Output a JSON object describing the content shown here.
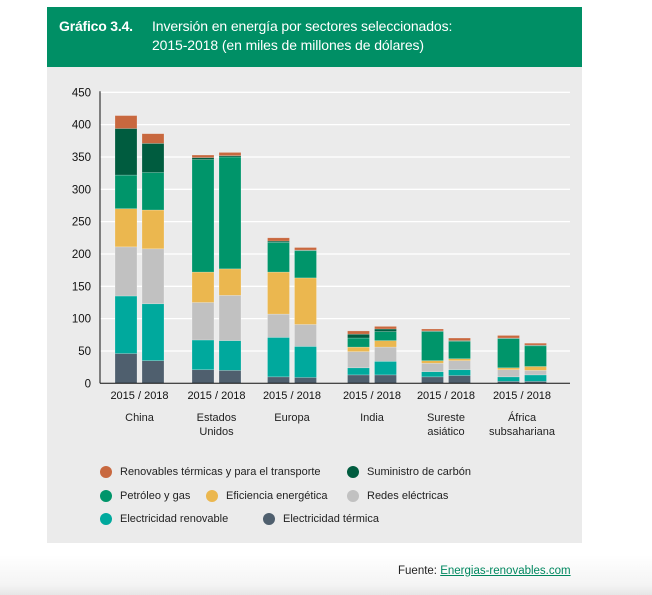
{
  "header": {
    "number": "Gráfico 3.4.",
    "title_line1": "Inversión en energía por sectores seleccionados:",
    "title_line2": "2015-2018 (en miles de millones de dólares)"
  },
  "colors": {
    "header_bg": "#008f65",
    "panel_bg": "#ebebeb",
    "link": "#00875f"
  },
  "source": {
    "prefix": "Fuente: ",
    "link_text": "Energias-renovables.com"
  },
  "chart_data": {
    "type": "bar",
    "stacked": true,
    "title": "Inversión en energía por sectores seleccionados: 2015-2018 (en miles de millones de dólares)",
    "xlabel": "",
    "ylabel": "",
    "ylim": [
      0,
      450
    ],
    "yticks": [
      0,
      50,
      100,
      150,
      200,
      250,
      300,
      350,
      400,
      450
    ],
    "grid": true,
    "legend_position": "bottom",
    "groups": [
      {
        "name": "China",
        "label_lines": [
          "China"
        ]
      },
      {
        "name": "Estados Unidos",
        "label_lines": [
          "Estados",
          "Unidos"
        ]
      },
      {
        "name": "Europa",
        "label_lines": [
          "Europa"
        ]
      },
      {
        "name": "India",
        "label_lines": [
          "India"
        ]
      },
      {
        "name": "Sureste asiático",
        "label_lines": [
          "Sureste",
          "asiático"
        ]
      },
      {
        "name": "África subsahariana",
        "label_lines": [
          "África",
          "subsahariana"
        ]
      }
    ],
    "bar_years": [
      "2015",
      "2018"
    ],
    "year_label": "2015 / 2018",
    "series": [
      {
        "name": "Electricidad térmica",
        "color": "#4f5f6e",
        "values": [
          [
            46,
            35
          ],
          [
            21,
            20
          ],
          [
            10,
            9
          ],
          [
            13,
            13
          ],
          [
            10,
            12
          ],
          [
            3,
            3
          ]
        ]
      },
      {
        "name": "Electricidad renovable",
        "color": "#00a99d",
        "values": [
          [
            89,
            88
          ],
          [
            46,
            46
          ],
          [
            61,
            48
          ],
          [
            11,
            21
          ],
          [
            8,
            9
          ],
          [
            7,
            10
          ]
        ]
      },
      {
        "name": "Redes eléctricas",
        "color": "#c1c1c1",
        "values": [
          [
            76,
            85
          ],
          [
            58,
            70
          ],
          [
            36,
            34
          ],
          [
            25,
            22
          ],
          [
            13,
            14
          ],
          [
            11,
            7
          ]
        ]
      },
      {
        "name": "Eficiencia energética",
        "color": "#ebb74f",
        "values": [
          [
            59,
            60
          ],
          [
            47,
            41
          ],
          [
            65,
            72
          ],
          [
            7,
            10
          ],
          [
            4,
            3
          ],
          [
            3,
            6
          ]
        ]
      },
      {
        "name": "Petróleo y gas",
        "color": "#00956a",
        "values": [
          [
            52,
            58
          ],
          [
            174,
            173
          ],
          [
            46,
            42
          ],
          [
            14,
            14
          ],
          [
            45,
            27
          ],
          [
            45,
            32
          ]
        ]
      },
      {
        "name": "Suministro de carbón",
        "color": "#005c3f",
        "values": [
          [
            72,
            45
          ],
          [
            3,
            2
          ],
          [
            2,
            1
          ],
          [
            6,
            4
          ],
          [
            1,
            1
          ],
          [
            1,
            1
          ]
        ]
      },
      {
        "name": "Renovables térmicas y para el transporte",
        "color": "#c8683f",
        "values": [
          [
            20,
            15
          ],
          [
            4,
            5
          ],
          [
            5,
            4
          ],
          [
            5,
            4
          ],
          [
            3,
            4
          ],
          [
            4,
            3
          ]
        ]
      }
    ],
    "legend_order": [
      [
        "Renovables térmicas y para el transporte",
        "Suministro de carbón"
      ],
      [
        "Petróleo y gas",
        "Eficiencia energética",
        "Redes eléctricas"
      ],
      [
        "Electricidad renovable",
        "Electricidad térmica"
      ]
    ]
  }
}
